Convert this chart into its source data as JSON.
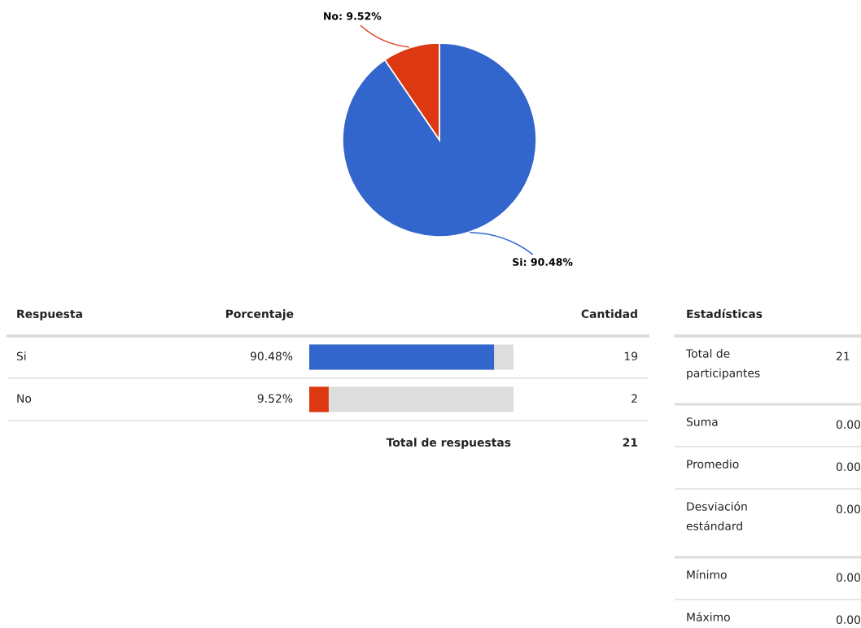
{
  "chart_data": [
    {
      "type": "pie",
      "values": [
        90.48,
        9.52
      ],
      "colors": [
        "#3366cc",
        "#dc3912"
      ],
      "value_labels": [
        "Si: 90.48%",
        "No: 9.52%"
      ]
    },
    {
      "type": "bar",
      "orientation": "horizontal",
      "categories": [
        "Si",
        "No"
      ],
      "values": [
        90.48,
        9.52
      ],
      "colors": [
        "#3366cc",
        "#dc3912"
      ],
      "xlim": [
        0,
        100
      ],
      "value_labels": [
        "90.48%",
        "9.52%"
      ],
      "annotations": [
        "Respuesta",
        "Porcentaje",
        "Cantidad",
        "19",
        "2",
        "Total de respuestas",
        "21"
      ]
    },
    {
      "type": "other",
      "title": "Estadísticas",
      "annotations": [
        "Total de participantes",
        "21",
        "Suma",
        "0.00",
        "Promedio",
        "0.00",
        "Desviación estándard",
        "0.00",
        "Mínimo",
        "0.00",
        "Máximo",
        "0.00"
      ]
    }
  ]
}
